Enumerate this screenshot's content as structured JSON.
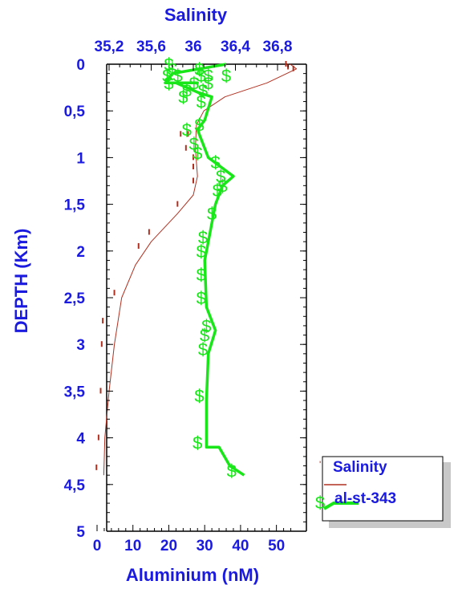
{
  "chart_data": {
    "type": "line",
    "title": "",
    "x_bottom": {
      "label": "Aluminium (nM)",
      "range": [
        0,
        55
      ],
      "ticks": [
        0,
        10,
        20,
        30,
        40,
        50
      ],
      "tick_labels": [
        "0",
        "10",
        "20",
        "30",
        "40",
        "50"
      ]
    },
    "x_top": {
      "label": "Salinity",
      "range": [
        35.0,
        37.0
      ],
      "ticks": [
        35.2,
        35.6,
        36.0,
        36.4,
        36.8
      ],
      "tick_labels": [
        "35,2",
        "35,6",
        "36",
        "36,4",
        "36,8"
      ]
    },
    "y": {
      "label": "DEPTH (Km)",
      "range": [
        0,
        5
      ],
      "reversed": true,
      "ticks": [
        0,
        0.5,
        1,
        1.5,
        2,
        2.5,
        3,
        3.5,
        4,
        4.5,
        5
      ],
      "tick_labels": [
        "0",
        "0,5",
        "1",
        "1,5",
        "2",
        "2,5",
        "3",
        "3,5",
        "4",
        "4,5",
        "5"
      ]
    },
    "legend": {
      "placement": "bottom-right",
      "entries": [
        "Salinity",
        "al-st-343"
      ]
    },
    "series": [
      {
        "name": "Salinity",
        "color": "#b03020",
        "axis": "x_top",
        "line": [
          {
            "x": 36.92,
            "y": 0.0
          },
          {
            "x": 36.98,
            "y": 0.05
          },
          {
            "x": 36.7,
            "y": 0.2
          },
          {
            "x": 36.3,
            "y": 0.35
          },
          {
            "x": 36.1,
            "y": 0.5
          },
          {
            "x": 36.03,
            "y": 0.65
          },
          {
            "x": 36.02,
            "y": 0.9
          },
          {
            "x": 36.04,
            "y": 1.2
          },
          {
            "x": 36.0,
            "y": 1.4
          },
          {
            "x": 35.85,
            "y": 1.6
          },
          {
            "x": 35.6,
            "y": 1.9
          },
          {
            "x": 35.45,
            "y": 2.15
          },
          {
            "x": 35.32,
            "y": 2.5
          },
          {
            "x": 35.25,
            "y": 3.0
          },
          {
            "x": 35.2,
            "y": 3.5
          },
          {
            "x": 35.16,
            "y": 4.0
          },
          {
            "x": 35.15,
            "y": 4.4
          }
        ],
        "points": [
          {
            "x": 36.88,
            "y": 0.0
          },
          {
            "x": 36.9,
            "y": 0.03
          },
          {
            "x": 36.95,
            "y": 0.05
          },
          {
            "x": 35.88,
            "y": 0.75
          },
          {
            "x": 35.95,
            "y": 0.75
          },
          {
            "x": 35.93,
            "y": 0.9
          },
          {
            "x": 36.0,
            "y": 1.0
          },
          {
            "x": 36.0,
            "y": 1.1
          },
          {
            "x": 36.0,
            "y": 1.25
          },
          {
            "x": 35.85,
            "y": 1.5
          },
          {
            "x": 35.58,
            "y": 1.8
          },
          {
            "x": 35.48,
            "y": 1.95
          },
          {
            "x": 35.25,
            "y": 2.45
          },
          {
            "x": 35.14,
            "y": 2.75
          },
          {
            "x": 35.13,
            "y": 3.0
          },
          {
            "x": 35.12,
            "y": 3.5
          },
          {
            "x": 35.1,
            "y": 4.0
          },
          {
            "x": 35.08,
            "y": 4.32
          }
        ]
      },
      {
        "name": "al-st-343",
        "color": "#19e619",
        "axis": "x_bottom",
        "line": [
          {
            "x": 36.0,
            "y": 0.0
          },
          {
            "x": 21.0,
            "y": 0.1
          },
          {
            "x": 19.0,
            "y": 0.2
          },
          {
            "x": 28.0,
            "y": 0.2
          },
          {
            "x": 22.0,
            "y": 0.2
          },
          {
            "x": 28.0,
            "y": 0.3
          },
          {
            "x": 32.0,
            "y": 0.35
          },
          {
            "x": 30.0,
            "y": 0.6
          },
          {
            "x": 28.0,
            "y": 0.7
          },
          {
            "x": 31.0,
            "y": 1.0
          },
          {
            "x": 38.0,
            "y": 1.2
          },
          {
            "x": 35.0,
            "y": 1.3
          },
          {
            "x": 33.0,
            "y": 1.5
          },
          {
            "x": 31.0,
            "y": 1.9
          },
          {
            "x": 30.0,
            "y": 2.1
          },
          {
            "x": 30.5,
            "y": 2.6
          },
          {
            "x": 33.0,
            "y": 2.85
          },
          {
            "x": 31.0,
            "y": 3.1
          },
          {
            "x": 30.5,
            "y": 3.6
          },
          {
            "x": 30.5,
            "y": 4.1
          },
          {
            "x": 34.0,
            "y": 4.1
          },
          {
            "x": 37.0,
            "y": 4.3
          },
          {
            "x": 41.0,
            "y": 4.4
          }
        ],
        "points": [
          {
            "x": 20.0,
            "y": 0.0
          },
          {
            "x": 21.0,
            "y": 0.05
          },
          {
            "x": 28.5,
            "y": 0.05
          },
          {
            "x": 19.5,
            "y": 0.12
          },
          {
            "x": 22.5,
            "y": 0.12
          },
          {
            "x": 29.0,
            "y": 0.12
          },
          {
            "x": 31.0,
            "y": 0.12
          },
          {
            "x": 36.0,
            "y": 0.12
          },
          {
            "x": 20.0,
            "y": 0.2
          },
          {
            "x": 27.0,
            "y": 0.2
          },
          {
            "x": 31.0,
            "y": 0.2
          },
          {
            "x": 25.0,
            "y": 0.28
          },
          {
            "x": 29.5,
            "y": 0.28
          },
          {
            "x": 24.0,
            "y": 0.35
          },
          {
            "x": 29.0,
            "y": 0.4
          },
          {
            "x": 28.5,
            "y": 0.65
          },
          {
            "x": 25.0,
            "y": 0.7
          },
          {
            "x": 27.0,
            "y": 0.85
          },
          {
            "x": 28.0,
            "y": 0.95
          },
          {
            "x": 33.0,
            "y": 1.05
          },
          {
            "x": 34.5,
            "y": 1.2
          },
          {
            "x": 35.0,
            "y": 1.3
          },
          {
            "x": 33.5,
            "y": 1.35
          },
          {
            "x": 32.0,
            "y": 1.6
          },
          {
            "x": 29.5,
            "y": 1.85
          },
          {
            "x": 29.0,
            "y": 2.0
          },
          {
            "x": 29.0,
            "y": 2.25
          },
          {
            "x": 29.0,
            "y": 2.5
          },
          {
            "x": 30.5,
            "y": 2.8
          },
          {
            "x": 30.0,
            "y": 2.9
          },
          {
            "x": 29.5,
            "y": 3.05
          },
          {
            "x": 28.5,
            "y": 3.55
          },
          {
            "x": 28.0,
            "y": 4.05
          },
          {
            "x": 37.5,
            "y": 4.35
          }
        ]
      }
    ]
  }
}
